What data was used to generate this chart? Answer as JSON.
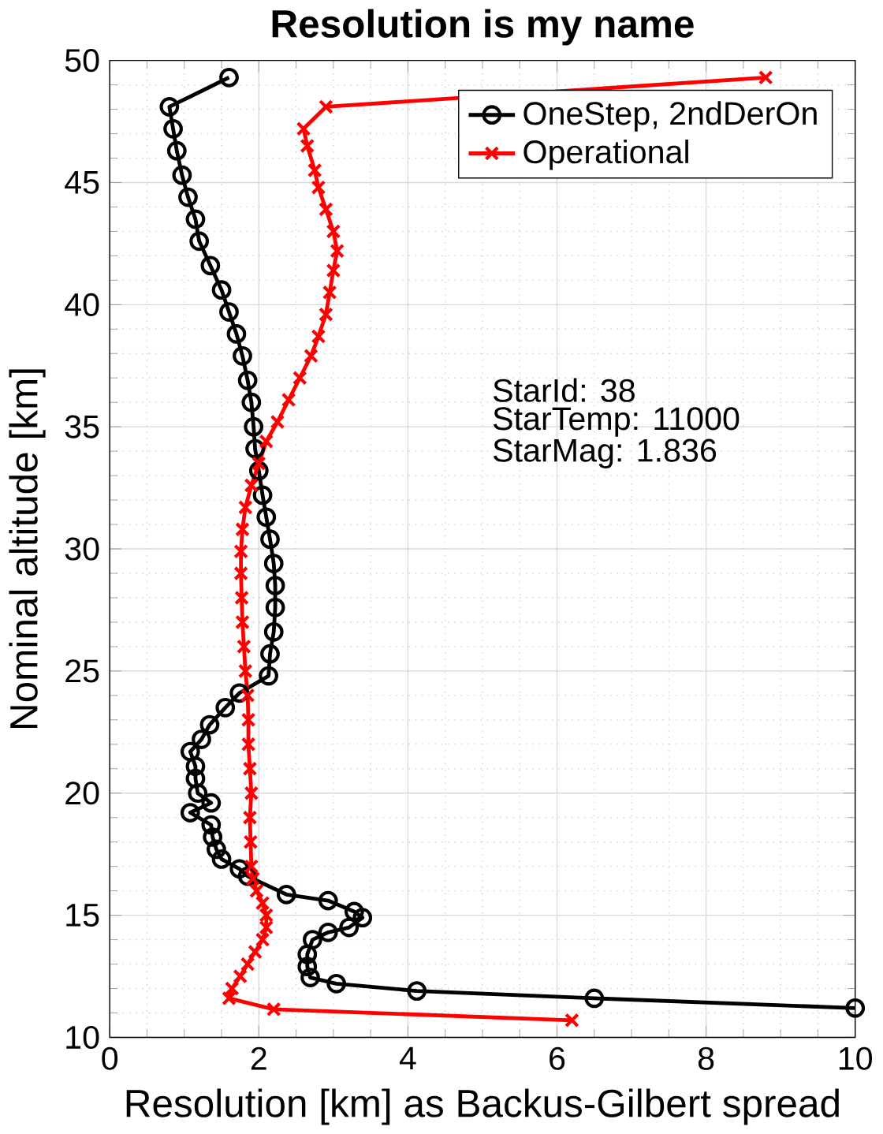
{
  "chart_data": {
    "type": "line",
    "title": "Resolution is my name",
    "xlabel": "Resolution [km] as Backus-Gilbert spread",
    "ylabel": "Nominal altitude [km]",
    "xlim": [
      0,
      10
    ],
    "ylim": [
      10,
      50
    ],
    "xticks": [
      0,
      2,
      4,
      6,
      8,
      10
    ],
    "yticks": [
      10,
      15,
      20,
      25,
      30,
      35,
      40,
      45,
      50
    ],
    "grid": true,
    "legend": "top right",
    "line_style": "solid",
    "annotations": [
      "StarId: 38",
      "StarTemp: 11000",
      "StarMag: 1.836"
    ],
    "series": [
      {
        "name": "OneStep, 2ndDerOn",
        "color": "#000000",
        "marker": "circle",
        "x": [
          1.6,
          0.8,
          0.85,
          0.9,
          0.97,
          1.05,
          1.15,
          1.2,
          1.35,
          1.5,
          1.6,
          1.7,
          1.78,
          1.85,
          1.9,
          1.93,
          1.95,
          2.0,
          2.05,
          2.1,
          2.15,
          2.2,
          2.22,
          2.22,
          2.2,
          2.15,
          2.13,
          1.74,
          1.55,
          1.34,
          1.23,
          1.08,
          1.15,
          1.15,
          1.18,
          1.36,
          1.08,
          1.36,
          1.38,
          1.43,
          1.5,
          1.74,
          1.85,
          2.37,
          2.93,
          3.28,
          3.39,
          3.21,
          2.93,
          2.72,
          2.65,
          2.65,
          2.69,
          3.04,
          4.12,
          6.5,
          10
        ],
        "values": [
          49.3,
          48.1,
          47.2,
          46.3,
          45.3,
          44.4,
          43.5,
          42.6,
          41.6,
          40.6,
          39.7,
          38.8,
          37.9,
          36.9,
          36.0,
          35.0,
          34.1,
          33.2,
          32.2,
          31.3,
          30.4,
          29.4,
          28.5,
          27.6,
          26.6,
          25.7,
          24.8,
          24.1,
          23.5,
          22.8,
          22.2,
          21.7,
          21.1,
          20.6,
          20.0,
          19.6,
          19.2,
          18.7,
          18.2,
          17.7,
          17.3,
          16.9,
          16.6,
          15.85,
          15.6,
          15.15,
          14.9,
          14.5,
          14.3,
          14.0,
          13.4,
          12.9,
          12.45,
          12.2,
          11.9,
          11.6,
          11.2
        ]
      },
      {
        "name": "Operational",
        "color": "#ff0000",
        "marker": "cross",
        "x": [
          8.8,
          2.9,
          2.6,
          2.65,
          2.75,
          2.8,
          2.9,
          3.0,
          3.05,
          3.0,
          2.95,
          2.9,
          2.8,
          2.7,
          2.55,
          2.4,
          2.25,
          2.1,
          2.0,
          1.9,
          1.82,
          1.78,
          1.76,
          1.76,
          1.77,
          1.78,
          1.8,
          1.82,
          1.85,
          1.86,
          1.86,
          1.88,
          1.9,
          1.88,
          1.89,
          1.9,
          1.92,
          1.97,
          2.05,
          2.1,
          2.1,
          2.05,
          1.95,
          1.85,
          1.75,
          1.64,
          1.6,
          2.2,
          6.2
        ],
        "values": [
          49.3,
          48.1,
          47.2,
          46.5,
          45.5,
          44.8,
          43.9,
          43.0,
          42.2,
          41.4,
          40.5,
          39.6,
          38.7,
          37.9,
          37.0,
          36.1,
          35.2,
          34.4,
          33.5,
          32.6,
          31.7,
          30.8,
          29.9,
          29.0,
          28.0,
          27.0,
          26.0,
          25.0,
          24.0,
          23.0,
          22.0,
          21.0,
          20.0,
          19.0,
          18.0,
          17.0,
          16.5,
          16.0,
          15.5,
          15.0,
          14.5,
          14.0,
          13.5,
          13.0,
          12.5,
          12.0,
          11.6,
          11.15,
          10.7
        ]
      }
    ]
  }
}
